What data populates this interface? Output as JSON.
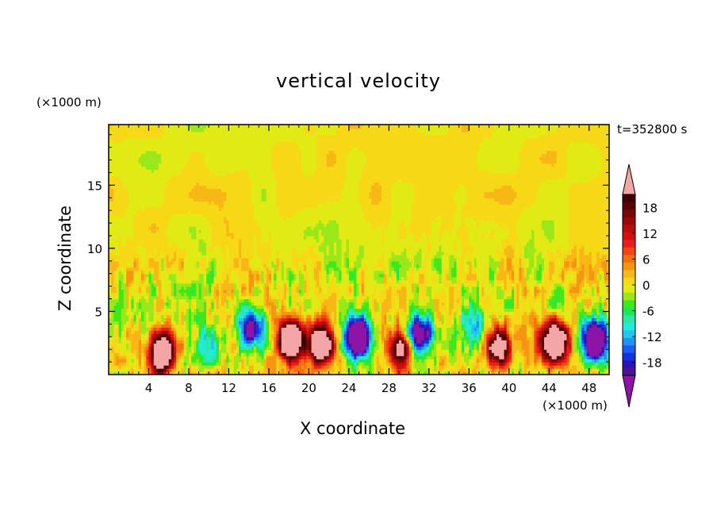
{
  "chart_data": {
    "type": "heatmap",
    "title": "vertical velocity",
    "xlabel": "X coordinate",
    "ylabel": "Z coordinate",
    "x_unit": "(×1000 m)",
    "y_unit": "(×1000 m)",
    "time_label": "t=352800 s",
    "xlim": [
      0,
      50
    ],
    "ylim": [
      0,
      19.8
    ],
    "x_ticks": [
      4,
      8,
      12,
      16,
      20,
      24,
      28,
      32,
      36,
      40,
      44,
      48
    ],
    "x_tick_labels": [
      "4",
      "8",
      "12",
      "16",
      "20",
      "24",
      "28",
      "32",
      "36",
      "40",
      "44",
      "48"
    ],
    "y_ticks": [
      5,
      10,
      15
    ],
    "y_tick_labels": [
      "5",
      "10",
      "15"
    ],
    "colorbar": {
      "min": -21,
      "max": 21,
      "step": 3,
      "tick_values": [
        18,
        12,
        6,
        0,
        -6,
        -12,
        -18
      ],
      "tick_labels": [
        "18",
        "12",
        "6",
        "0",
        "-6",
        "-12",
        "-18"
      ],
      "over_color": "#f4a5a5",
      "under_color": "#8e14a8",
      "colors": [
        "#4a1298",
        "#2a14b4",
        "#1432e0",
        "#1b5cf5",
        "#1f92f2",
        "#1ec6ee",
        "#21ecdc",
        "#2fe6a6",
        "#17e854",
        "#3fe81a",
        "#9ae81a",
        "#e2ea16",
        "#f7d817",
        "#f7b817",
        "#f79412",
        "#f56f0f",
        "#f2450f",
        "#e81e1e",
        "#d40f10",
        "#bb0c0c",
        "#9c0808",
        "#7a0606",
        "#5a0404",
        "#400202"
      ]
    },
    "features": [
      {
        "x": 5.3,
        "z": 1.7,
        "w": 40
      },
      {
        "x": 18.2,
        "z": 2.8,
        "w": 40
      },
      {
        "x": 21.3,
        "z": 2.4,
        "w": 35
      },
      {
        "x": 29.2,
        "z": 2.0,
        "w": 26
      },
      {
        "x": 39.0,
        "z": 2.2,
        "w": 30
      },
      {
        "x": 44.6,
        "z": 2.6,
        "w": 40
      },
      {
        "x": 14.2,
        "z": 3.8,
        "w": -26
      },
      {
        "x": 25.0,
        "z": 3.0,
        "w": -40
      },
      {
        "x": 31.0,
        "z": 3.2,
        "w": -28
      },
      {
        "x": 48.6,
        "z": 2.7,
        "w": -40
      },
      {
        "x": 10.2,
        "z": 2.3,
        "w": -10
      },
      {
        "x": 36.5,
        "z": 4.0,
        "w": -10
      }
    ]
  }
}
